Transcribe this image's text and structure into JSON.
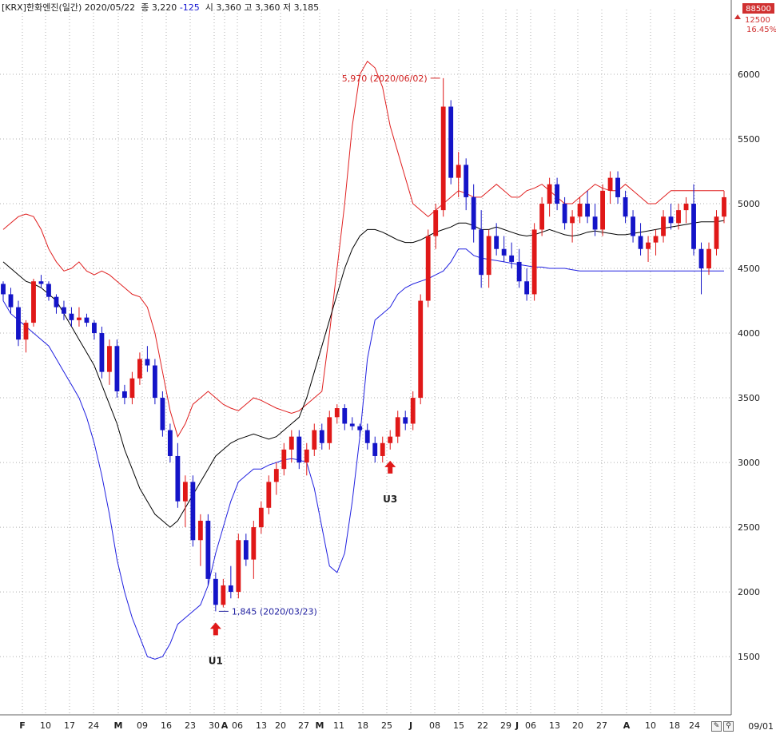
{
  "header": {
    "symbol": "[KRX]한화엔진(일간)",
    "date": "2020/05/22",
    "close_label": "종",
    "close": "3,220",
    "change": "-125",
    "open_label": "시",
    "open": "3,360",
    "high_label": "고",
    "high": "3,360",
    "low_label": "저",
    "low": "3,185"
  },
  "corner_date": "09/01",
  "chart_data": {
    "type": "candlestick",
    "ylim": [
      1050,
      6500
    ],
    "y_ticks": [
      1500,
      2000,
      2500,
      3000,
      3500,
      4000,
      4500,
      5000,
      5500,
      6000
    ],
    "x_tick_labels": [
      "F",
      "10",
      "17",
      "24",
      "M",
      "09",
      "16",
      "23",
      "30",
      "A",
      "06",
      "13",
      "20",
      "27",
      "M",
      "11",
      "18",
      "25",
      "J",
      "08",
      "15",
      "22",
      "29",
      "J",
      "06",
      "13",
      "20",
      "27",
      "A",
      "10",
      "18",
      "24",
      "09/01"
    ],
    "right_axis_markers": {
      "top_value": "88500",
      "value_2": "12500",
      "percent": "16.45%"
    },
    "annotations": [
      {
        "text": "5,970 (2020/06/02)",
        "color": "#d02020",
        "type": "high"
      },
      {
        "text": "1,845 (2020/03/23)",
        "color": "#2020a0",
        "type": "low"
      },
      {
        "text": "U1",
        "color": "#202020",
        "type": "signal"
      },
      {
        "text": "U3",
        "color": "#202020",
        "type": "signal"
      }
    ],
    "colors": {
      "up": "#e01818",
      "down": "#1414c8",
      "upper_band": "#e02020",
      "lower_band": "#2020e0",
      "middle_band": "#000000",
      "grid": "#b0b0b0"
    },
    "series": [
      {
        "name": "candles",
        "points": [
          [
            4380,
            4400,
            4250,
            4300
          ],
          [
            4300,
            4350,
            4150,
            4200
          ],
          [
            4200,
            4250,
            3900,
            3950
          ],
          [
            3950,
            4100,
            3850,
            4080
          ],
          [
            4080,
            4420,
            4050,
            4400
          ],
          [
            4400,
            4450,
            4350,
            4380
          ],
          [
            4380,
            4400,
            4250,
            4280
          ],
          [
            4280,
            4300,
            4150,
            4200
          ],
          [
            4200,
            4250,
            4100,
            4150
          ],
          [
            4150,
            4200,
            4050,
            4100
          ],
          [
            4100,
            4200,
            4050,
            4120
          ],
          [
            4120,
            4150,
            4050,
            4080
          ],
          [
            4080,
            4100,
            3950,
            4000
          ],
          [
            4000,
            4050,
            3650,
            3700
          ],
          [
            3700,
            3950,
            3600,
            3900
          ],
          [
            3900,
            3950,
            3500,
            3550
          ],
          [
            3550,
            3600,
            3450,
            3500
          ],
          [
            3500,
            3700,
            3450,
            3650
          ],
          [
            3650,
            3850,
            3600,
            3800
          ],
          [
            3800,
            3900,
            3700,
            3750
          ],
          [
            3750,
            3800,
            3450,
            3500
          ],
          [
            3500,
            3550,
            3200,
            3250
          ],
          [
            3250,
            3300,
            3000,
            3050
          ],
          [
            3050,
            3150,
            2650,
            2700
          ],
          [
            2700,
            2900,
            2500,
            2850
          ],
          [
            2850,
            2900,
            2350,
            2400
          ],
          [
            2400,
            2600,
            2200,
            2550
          ],
          [
            2550,
            2600,
            2050,
            2100
          ],
          [
            2100,
            2150,
            1850,
            1900
          ],
          [
            1900,
            2100,
            1880,
            2050
          ],
          [
            2050,
            2200,
            1950,
            2000
          ],
          [
            2000,
            2450,
            1950,
            2400
          ],
          [
            2400,
            2450,
            2200,
            2250
          ],
          [
            2250,
            2550,
            2100,
            2500
          ],
          [
            2500,
            2700,
            2450,
            2650
          ],
          [
            2650,
            2900,
            2600,
            2850
          ],
          [
            2850,
            3000,
            2750,
            2950
          ],
          [
            2950,
            3150,
            2900,
            3100
          ],
          [
            3100,
            3250,
            3000,
            3200
          ],
          [
            3200,
            3250,
            2950,
            3000
          ],
          [
            3000,
            3150,
            2900,
            3100
          ],
          [
            3100,
            3300,
            3050,
            3250
          ],
          [
            3250,
            3300,
            3100,
            3150
          ],
          [
            3150,
            3400,
            3100,
            3350
          ],
          [
            3350,
            3450,
            3300,
            3420
          ],
          [
            3420,
            3450,
            3250,
            3300
          ],
          [
            3300,
            3350,
            3250,
            3280
          ],
          [
            3280,
            3300,
            3200,
            3250
          ],
          [
            3250,
            3300,
            3100,
            3150
          ],
          [
            3150,
            3200,
            3000,
            3050
          ],
          [
            3050,
            3200,
            3000,
            3150
          ],
          [
            3150,
            3250,
            3100,
            3200
          ],
          [
            3200,
            3400,
            3150,
            3350
          ],
          [
            3350,
            3400,
            3250,
            3300
          ],
          [
            3300,
            3550,
            3250,
            3500
          ],
          [
            3500,
            4300,
            3450,
            4250
          ],
          [
            4250,
            4800,
            4200,
            4750
          ],
          [
            4750,
            5000,
            4650,
            4950
          ],
          [
            4950,
            5970,
            4900,
            5750
          ],
          [
            5750,
            5800,
            5150,
            5200
          ],
          [
            5200,
            5400,
            5050,
            5300
          ],
          [
            5300,
            5350,
            4950,
            5050
          ],
          [
            5050,
            5150,
            4700,
            4800
          ],
          [
            4800,
            4950,
            4350,
            4450
          ],
          [
            4450,
            4800,
            4350,
            4750
          ],
          [
            4750,
            4850,
            4600,
            4650
          ],
          [
            4650,
            4750,
            4550,
            4600
          ],
          [
            4600,
            4700,
            4500,
            4550
          ],
          [
            4550,
            4650,
            4350,
            4400
          ],
          [
            4400,
            4500,
            4250,
            4300
          ],
          [
            4300,
            4850,
            4250,
            4800
          ],
          [
            4800,
            5050,
            4750,
            5000
          ],
          [
            5000,
            5200,
            4900,
            5150
          ],
          [
            5150,
            5200,
            4950,
            5000
          ],
          [
            5000,
            5050,
            4800,
            4850
          ],
          [
            4850,
            4950,
            4700,
            4900
          ],
          [
            4900,
            5050,
            4850,
            5000
          ],
          [
            5000,
            5100,
            4850,
            4900
          ],
          [
            4900,
            5000,
            4750,
            4800
          ],
          [
            4800,
            5150,
            4750,
            5100
          ],
          [
            5100,
            5250,
            5000,
            5200
          ],
          [
            5200,
            5250,
            5000,
            5050
          ],
          [
            5050,
            5100,
            4850,
            4900
          ],
          [
            4900,
            4950,
            4700,
            4750
          ],
          [
            4750,
            4850,
            4600,
            4650
          ],
          [
            4650,
            4750,
            4550,
            4700
          ],
          [
            4700,
            4800,
            4600,
            4750
          ],
          [
            4750,
            4950,
            4700,
            4900
          ],
          [
            4900,
            5000,
            4800,
            4850
          ],
          [
            4850,
            5000,
            4800,
            4950
          ],
          [
            4950,
            5050,
            4850,
            5000
          ],
          [
            5000,
            5150,
            4600,
            4650
          ],
          [
            4650,
            4700,
            4300,
            4500
          ],
          [
            4500,
            4700,
            4450,
            4650
          ],
          [
            4650,
            4950,
            4600,
            4900
          ],
          [
            4900,
            5100,
            4850,
            5050
          ]
        ]
      },
      {
        "name": "upper_band",
        "points": [
          4800,
          4850,
          4900,
          4920,
          4900,
          4800,
          4650,
          4550,
          4480,
          4500,
          4550,
          4480,
          4450,
          4480,
          4450,
          4400,
          4350,
          4300,
          4280,
          4200,
          4000,
          3700,
          3400,
          3200,
          3300,
          3450,
          3500,
          3550,
          3500,
          3450,
          3420,
          3400,
          3450,
          3500,
          3480,
          3450,
          3420,
          3400,
          3380,
          3400,
          3450,
          3500,
          3550,
          4000,
          4500,
          5000,
          5600,
          6000,
          6100,
          6050,
          5900,
          5600,
          5400,
          5200,
          5000,
          4950,
          4900,
          4950,
          5000,
          5050,
          5100,
          5080,
          5050,
          5050,
          5100,
          5150,
          5100,
          5050,
          5050,
          5100,
          5120,
          5150,
          5100,
          5050,
          5000,
          5000,
          5050,
          5100,
          5150,
          5120,
          5100,
          5100,
          5150,
          5100,
          5050,
          5000,
          5000,
          5050,
          5100,
          5100,
          5100,
          5100,
          5100,
          5100,
          5100,
          5100
        ]
      },
      {
        "name": "middle_band",
        "points": [
          4550,
          4500,
          4450,
          4400,
          4380,
          4350,
          4300,
          4250,
          4150,
          4050,
          3950,
          3850,
          3750,
          3600,
          3450,
          3300,
          3100,
          2950,
          2800,
          2700,
          2600,
          2550,
          2500,
          2550,
          2650,
          2750,
          2850,
          2950,
          3050,
          3100,
          3150,
          3180,
          3200,
          3220,
          3200,
          3180,
          3200,
          3250,
          3300,
          3350,
          3500,
          3700,
          3900,
          4100,
          4300,
          4500,
          4650,
          4750,
          4800,
          4800,
          4780,
          4750,
          4720,
          4700,
          4700,
          4720,
          4750,
          4780,
          4800,
          4820,
          4850,
          4850,
          4830,
          4800,
          4800,
          4820,
          4800,
          4780,
          4760,
          4750,
          4760,
          4780,
          4800,
          4780,
          4760,
          4750,
          4760,
          4780,
          4790,
          4780,
          4770,
          4760,
          4760,
          4770,
          4780,
          4790,
          4800,
          4810,
          4820,
          4830,
          4840,
          4850,
          4860,
          4860,
          4860,
          4870
        ]
      },
      {
        "name": "lower_band",
        "points": [
          4250,
          4150,
          4100,
          4050,
          4000,
          3950,
          3900,
          3800,
          3700,
          3600,
          3500,
          3350,
          3150,
          2900,
          2600,
          2250,
          2000,
          1800,
          1650,
          1500,
          1480,
          1500,
          1600,
          1750,
          1800,
          1850,
          1900,
          2050,
          2300,
          2500,
          2700,
          2850,
          2900,
          2950,
          2950,
          2980,
          3000,
          3020,
          3030,
          3020,
          3000,
          2800,
          2500,
          2200,
          2150,
          2300,
          2700,
          3200,
          3800,
          4100,
          4150,
          4200,
          4300,
          4350,
          4380,
          4400,
          4420,
          4450,
          4480,
          4550,
          4650,
          4650,
          4600,
          4580,
          4570,
          4560,
          4550,
          4540,
          4530,
          4520,
          4510,
          4510,
          4500,
          4500,
          4500,
          4490,
          4480,
          4480,
          4480,
          4480,
          4480,
          4480,
          4480,
          4480,
          4480,
          4480,
          4480,
          4480,
          4480,
          4480,
          4480,
          4480,
          4480,
          4480,
          4480,
          4480
        ]
      }
    ]
  }
}
